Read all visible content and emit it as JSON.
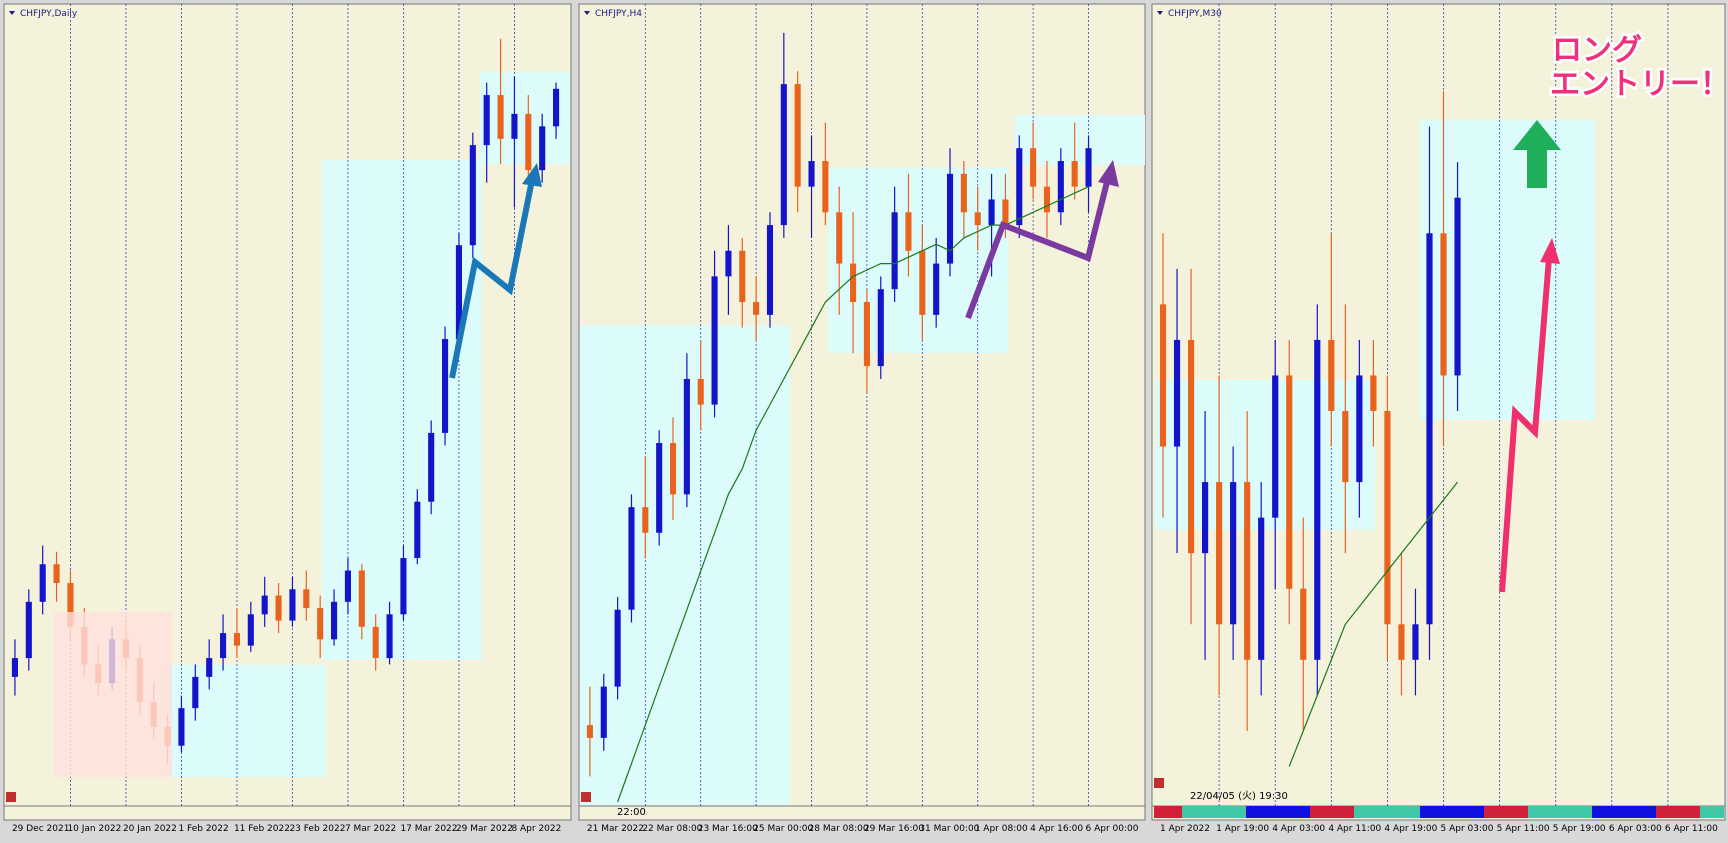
{
  "chart_data": [
    {
      "type": "candlestick",
      "title": "CHFJPY,Daily",
      "up_color": "#1414c8",
      "down_color": "#e8641e",
      "grid": true,
      "ylim": [
        122,
        134.5
      ],
      "categories": [
        "29 Dec 2021",
        null,
        null,
        null,
        "10 Jan 2022",
        null,
        null,
        null,
        "20 Jan 2022",
        null,
        null,
        null,
        "1 Feb 2022",
        null,
        null,
        null,
        "11 Feb 2022",
        null,
        null,
        null,
        "23 Feb 2022",
        null,
        null,
        null,
        "7 Mar 2022",
        null,
        null,
        null,
        "17 Mar 2022",
        null,
        null,
        null,
        "29 Mar 2022",
        null,
        null,
        null,
        "8 Apr 2022",
        null,
        null,
        null
      ],
      "ohlc": [
        [
          124.0,
          124.6,
          123.7,
          124.3
        ],
        [
          124.3,
          125.4,
          124.1,
          125.2
        ],
        [
          125.2,
          126.1,
          125.0,
          125.8
        ],
        [
          125.8,
          126.0,
          125.2,
          125.5
        ],
        [
          125.5,
          125.7,
          124.6,
          124.8
        ],
        [
          124.8,
          125.1,
          124.0,
          124.2
        ],
        [
          124.2,
          124.5,
          123.7,
          123.9
        ],
        [
          123.9,
          124.8,
          123.8,
          124.6
        ],
        [
          124.6,
          124.9,
          124.1,
          124.3
        ],
        [
          124.3,
          124.5,
          123.4,
          123.6
        ],
        [
          123.6,
          123.9,
          123.0,
          123.2
        ],
        [
          123.2,
          123.4,
          122.6,
          122.9
        ],
        [
          122.9,
          123.7,
          122.8,
          123.5
        ],
        [
          123.5,
          124.2,
          123.3,
          124.0
        ],
        [
          124.0,
          124.6,
          123.8,
          124.3
        ],
        [
          124.3,
          125.0,
          124.1,
          124.7
        ],
        [
          124.7,
          125.1,
          124.3,
          124.5
        ],
        [
          124.5,
          125.2,
          124.4,
          125.0
        ],
        [
          125.0,
          125.6,
          124.8,
          125.3
        ],
        [
          125.3,
          125.5,
          124.7,
          124.9
        ],
        [
          124.9,
          125.6,
          124.8,
          125.4
        ],
        [
          125.4,
          125.7,
          124.9,
          125.1
        ],
        [
          125.1,
          125.3,
          124.3,
          124.6
        ],
        [
          124.6,
          125.4,
          124.5,
          125.2
        ],
        [
          125.2,
          125.9,
          125.0,
          125.7
        ],
        [
          125.7,
          125.8,
          124.6,
          124.8
        ],
        [
          124.8,
          125.0,
          124.1,
          124.3
        ],
        [
          124.3,
          125.2,
          124.2,
          125.0
        ],
        [
          125.0,
          126.1,
          124.9,
          125.9
        ],
        [
          125.9,
          127.0,
          125.8,
          126.8
        ],
        [
          126.8,
          128.1,
          126.6,
          127.9
        ],
        [
          127.9,
          129.6,
          127.7,
          129.4
        ],
        [
          129.4,
          131.1,
          129.2,
          130.9
        ],
        [
          130.9,
          132.7,
          130.7,
          132.5
        ],
        [
          132.5,
          133.5,
          131.9,
          133.3
        ],
        [
          133.3,
          134.2,
          132.2,
          132.6
        ],
        [
          132.6,
          133.6,
          131.5,
          133.0
        ],
        [
          133.0,
          133.3,
          131.9,
          132.1
        ],
        [
          132.1,
          133.0,
          131.9,
          132.8
        ],
        [
          132.8,
          133.5,
          132.6,
          133.4
        ]
      ]
    },
    {
      "type": "candlestick",
      "title": "CHFJPY,H4",
      "up_color": "#1414c8",
      "down_color": "#e8641e",
      "grid": true,
      "ylim": [
        128,
        134.1
      ],
      "cursor_label": "22:00",
      "categories": [
        "21 Mar 2022",
        null,
        null,
        null,
        "22 Mar 08:00",
        null,
        null,
        null,
        "23 Mar 16:00",
        null,
        null,
        null,
        "25 Mar 00:00",
        null,
        null,
        null,
        "28 Mar 08:00",
        null,
        null,
        null,
        "29 Mar 16:00",
        null,
        null,
        null,
        "31 Mar 00:00",
        null,
        null,
        null,
        "1 Apr 08:00",
        null,
        null,
        null,
        "4 Apr 16:00",
        null,
        null,
        null,
        "6 Apr 00:00",
        null,
        null,
        null
      ],
      "ohlc": [
        [
          128.6,
          128.9,
          128.2,
          128.5
        ],
        [
          128.5,
          129.0,
          128.4,
          128.9
        ],
        [
          128.9,
          129.6,
          128.8,
          129.5
        ],
        [
          129.5,
          130.4,
          129.4,
          130.3
        ],
        [
          130.3,
          130.7,
          129.9,
          130.1
        ],
        [
          130.1,
          130.9,
          130.0,
          130.8
        ],
        [
          130.8,
          131.0,
          130.2,
          130.4
        ],
        [
          130.4,
          131.5,
          130.3,
          131.3
        ],
        [
          131.3,
          131.6,
          130.9,
          131.1
        ],
        [
          131.1,
          132.3,
          131.0,
          132.1
        ],
        [
          132.1,
          132.5,
          131.8,
          132.3
        ],
        [
          132.3,
          132.4,
          131.7,
          131.9
        ],
        [
          131.9,
          132.1,
          131.6,
          131.8
        ],
        [
          131.8,
          132.6,
          131.7,
          132.5
        ],
        [
          132.5,
          134.0,
          132.4,
          133.6
        ],
        [
          133.6,
          133.7,
          132.6,
          132.8
        ],
        [
          132.8,
          133.2,
          132.4,
          133.0
        ],
        [
          133.0,
          133.3,
          132.5,
          132.6
        ],
        [
          132.6,
          132.8,
          131.8,
          132.2
        ],
        [
          132.2,
          132.6,
          131.5,
          131.9
        ],
        [
          131.9,
          132.0,
          131.2,
          131.4
        ],
        [
          131.4,
          132.1,
          131.3,
          132.0
        ],
        [
          132.0,
          132.8,
          131.9,
          132.6
        ],
        [
          132.6,
          132.9,
          132.1,
          132.3
        ],
        [
          132.3,
          132.5,
          131.6,
          131.8
        ],
        [
          131.8,
          132.4,
          131.7,
          132.2
        ],
        [
          132.2,
          133.1,
          132.1,
          132.9
        ],
        [
          132.9,
          133.0,
          132.4,
          132.6
        ],
        [
          132.6,
          132.8,
          132.3,
          132.5
        ],
        [
          132.5,
          132.9,
          132.1,
          132.7
        ],
        [
          132.7,
          132.9,
          132.4,
          132.5
        ],
        [
          132.5,
          133.2,
          132.4,
          133.1
        ],
        [
          133.1,
          133.3,
          132.7,
          132.8
        ],
        [
          132.8,
          133.0,
          132.4,
          132.6
        ],
        [
          132.6,
          133.1,
          132.5,
          133.0
        ],
        [
          133.0,
          133.3,
          132.7,
          132.8
        ],
        [
          132.8,
          133.2,
          132.6,
          133.1
        ],
        null,
        null,
        null
      ],
      "ma": {
        "color": "#1a7a1a",
        "values": [
          null,
          null,
          128.0,
          128.3,
          128.6,
          128.9,
          129.2,
          129.5,
          129.8,
          130.1,
          130.4,
          130.6,
          130.9,
          131.1,
          131.3,
          131.5,
          131.7,
          131.9,
          132.0,
          132.1,
          132.15,
          132.2,
          132.2,
          132.25,
          132.3,
          132.35,
          132.3,
          132.4,
          132.45,
          132.5,
          132.5,
          132.55,
          132.6,
          132.65,
          132.7,
          132.75,
          132.8,
          null,
          null,
          null
        ]
      }
    },
    {
      "type": "candlestick",
      "title": "CHFJPY,M30",
      "up_color": "#1414c8",
      "down_color": "#e8641e",
      "grid": true,
      "ylim": [
        131.5,
        133.7
      ],
      "cursor_label": "22/04/05 (火) 19:30",
      "annotations": [
        "ロング",
        "エントリー！"
      ],
      "categories": [
        "1 Apr 2022",
        null,
        null,
        null,
        "1 Apr 19:00",
        null,
        null,
        null,
        "4 Apr 03:00",
        null,
        null,
        null,
        "4 Apr 11:00",
        null,
        null,
        null,
        "4 Apr 19:00",
        null,
        null,
        null,
        "5 Apr 03:00",
        null,
        null,
        null,
        "5 Apr 11:00",
        null,
        null,
        null,
        "5 Apr 19:00",
        null,
        null,
        null,
        "6 Apr 03:00",
        null,
        null,
        null,
        "6 Apr 11:00",
        null,
        null,
        null
      ],
      "ohlc": [
        [
          132.9,
          133.1,
          132.3,
          132.5
        ],
        [
          132.5,
          133.0,
          132.2,
          132.8
        ],
        [
          132.8,
          133.0,
          132.0,
          132.2
        ],
        [
          132.2,
          132.6,
          131.9,
          132.4
        ],
        [
          132.4,
          132.7,
          131.8,
          132.0
        ],
        [
          132.0,
          132.5,
          131.9,
          132.4
        ],
        [
          132.4,
          132.6,
          131.7,
          131.9
        ],
        [
          131.9,
          132.4,
          131.8,
          132.3
        ],
        [
          132.3,
          132.8,
          132.1,
          132.7
        ],
        [
          132.7,
          132.8,
          132.0,
          132.1
        ],
        [
          132.1,
          132.3,
          131.7,
          131.9
        ],
        [
          131.9,
          132.9,
          131.8,
          132.8
        ],
        [
          132.8,
          133.1,
          132.5,
          132.6
        ],
        [
          132.6,
          132.9,
          132.2,
          132.4
        ],
        [
          132.4,
          132.8,
          132.3,
          132.7
        ],
        [
          132.7,
          132.8,
          132.5,
          132.6
        ],
        [
          132.6,
          132.7,
          131.9,
          132.0
        ],
        [
          132.0,
          132.2,
          131.8,
          131.9
        ],
        [
          131.9,
          132.1,
          131.8,
          132.0
        ],
        [
          132.0,
          133.4,
          131.9,
          133.1
        ],
        [
          133.1,
          133.5,
          132.5,
          132.7
        ],
        [
          132.7,
          133.3,
          132.6,
          133.2
        ],
        null,
        null,
        null,
        null,
        null,
        null,
        null,
        null,
        null,
        null,
        null,
        null,
        null,
        null,
        null,
        null,
        null,
        null
      ],
      "ma": {
        "color": "#1a7a1a",
        "values": [
          null,
          null,
          null,
          null,
          null,
          null,
          null,
          null,
          null,
          131.6,
          131.7,
          131.8,
          131.9,
          132.0,
          132.05,
          132.1,
          132.15,
          132.2,
          132.25,
          132.3,
          132.35,
          132.4,
          null,
          null,
          null,
          null,
          null,
          null,
          null,
          null,
          null,
          null,
          null,
          null,
          null,
          null,
          null,
          null,
          null,
          null
        ]
      }
    }
  ]
}
